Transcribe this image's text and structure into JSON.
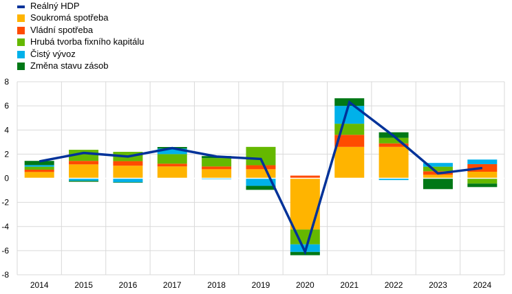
{
  "chart_data": {
    "type": "bar",
    "stacked": true,
    "categories": [
      "2014",
      "2015",
      "2016",
      "2017",
      "2018",
      "2019",
      "2020",
      "2021",
      "2022",
      "2023",
      "2024"
    ],
    "ylim": [
      -8,
      8
    ],
    "yticks": [
      "-8",
      "-6",
      "-4",
      "-2",
      "0",
      "2",
      "4",
      "6",
      "8"
    ],
    "grid": true,
    "legend_position": "top-left",
    "series": [
      {
        "name": "Soukromá spotřeba",
        "color": "#FFB400",
        "values": [
          0.52,
          1.15,
          1.04,
          0.98,
          0.75,
          0.75,
          -4.25,
          2.6,
          2.6,
          0.29,
          0.54
        ]
      },
      {
        "name": "Vládní spotřeba",
        "color": "#FF4B00",
        "values": [
          0.19,
          0.29,
          0.38,
          0.23,
          0.23,
          0.33,
          0.22,
          1.0,
          0.29,
          0.29,
          0.63
        ]
      },
      {
        "name": "Hrubá tvorba fixního kapitálu",
        "color": "#65B800",
        "values": [
          0.25,
          0.92,
          0.77,
          0.79,
          0.69,
          1.52,
          -1.23,
          0.92,
          0.46,
          0.38,
          -0.44
        ]
      },
      {
        "name": "Čistý vývoz",
        "color": "#00B1EA",
        "values": [
          0.13,
          -0.21,
          -0.33,
          0.46,
          -0.08,
          -0.63,
          -0.63,
          1.48,
          -0.15,
          0.31,
          0.38
        ]
      },
      {
        "name": "Změna stavu zásob",
        "color": "#007816",
        "values": [
          0.35,
          -0.08,
          -0.04,
          0.13,
          0.17,
          -0.33,
          -0.27,
          0.63,
          0.46,
          -0.9,
          -0.29
        ]
      }
    ],
    "line": {
      "name": "Reálný HDP",
      "color": "#003299",
      "values": [
        1.4,
        2.1,
        1.8,
        2.5,
        1.8,
        1.6,
        -6.1,
        6.3,
        3.5,
        0.4,
        0.85
      ]
    }
  }
}
